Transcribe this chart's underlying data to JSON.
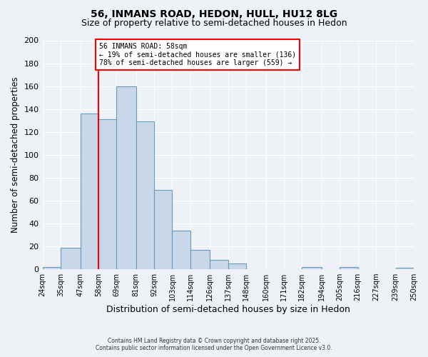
{
  "title": "56, INMANS ROAD, HEDON, HULL, HU12 8LG",
  "subtitle": "Size of property relative to semi-detached houses in Hedon",
  "xlabel": "Distribution of semi-detached houses by size in Hedon",
  "ylabel": "Number of semi-detached properties",
  "bin_labels": [
    "24sqm",
    "35sqm",
    "47sqm",
    "58sqm",
    "69sqm",
    "81sqm",
    "92sqm",
    "103sqm",
    "114sqm",
    "126sqm",
    "137sqm",
    "148sqm",
    "160sqm",
    "171sqm",
    "182sqm",
    "194sqm",
    "205sqm",
    "216sqm",
    "227sqm",
    "239sqm",
    "250sqm"
  ],
  "bin_edges": [
    24,
    35,
    47,
    58,
    69,
    81,
    92,
    103,
    114,
    126,
    137,
    148,
    160,
    171,
    182,
    194,
    205,
    216,
    227,
    239,
    250
  ],
  "bar_heights": [
    2,
    19,
    136,
    131,
    160,
    129,
    69,
    34,
    17,
    8,
    5,
    0,
    0,
    0,
    2,
    0,
    2,
    0,
    0,
    1
  ],
  "bar_color": "#c8d8e8",
  "bar_edge_color": "#6699bb",
  "property_line_x": 58,
  "property_line_color": "red",
  "annotation_title": "56 INMANS ROAD: 58sqm",
  "annotation_line1": "← 19% of semi-detached houses are smaller (136)",
  "annotation_line2": "78% of semi-detached houses are larger (559) →",
  "annotation_box_color": "white",
  "annotation_box_edge_color": "red",
  "ylim": [
    0,
    200
  ],
  "yticks": [
    0,
    20,
    40,
    60,
    80,
    100,
    120,
    140,
    160,
    180,
    200
  ],
  "background_color": "#eef2f7",
  "grid_color": "white",
  "footer_line1": "Contains HM Land Registry data © Crown copyright and database right 2025.",
  "footer_line2": "Contains public sector information licensed under the Open Government Licence v3.0.",
  "title_fontsize": 10,
  "subtitle_fontsize": 9
}
